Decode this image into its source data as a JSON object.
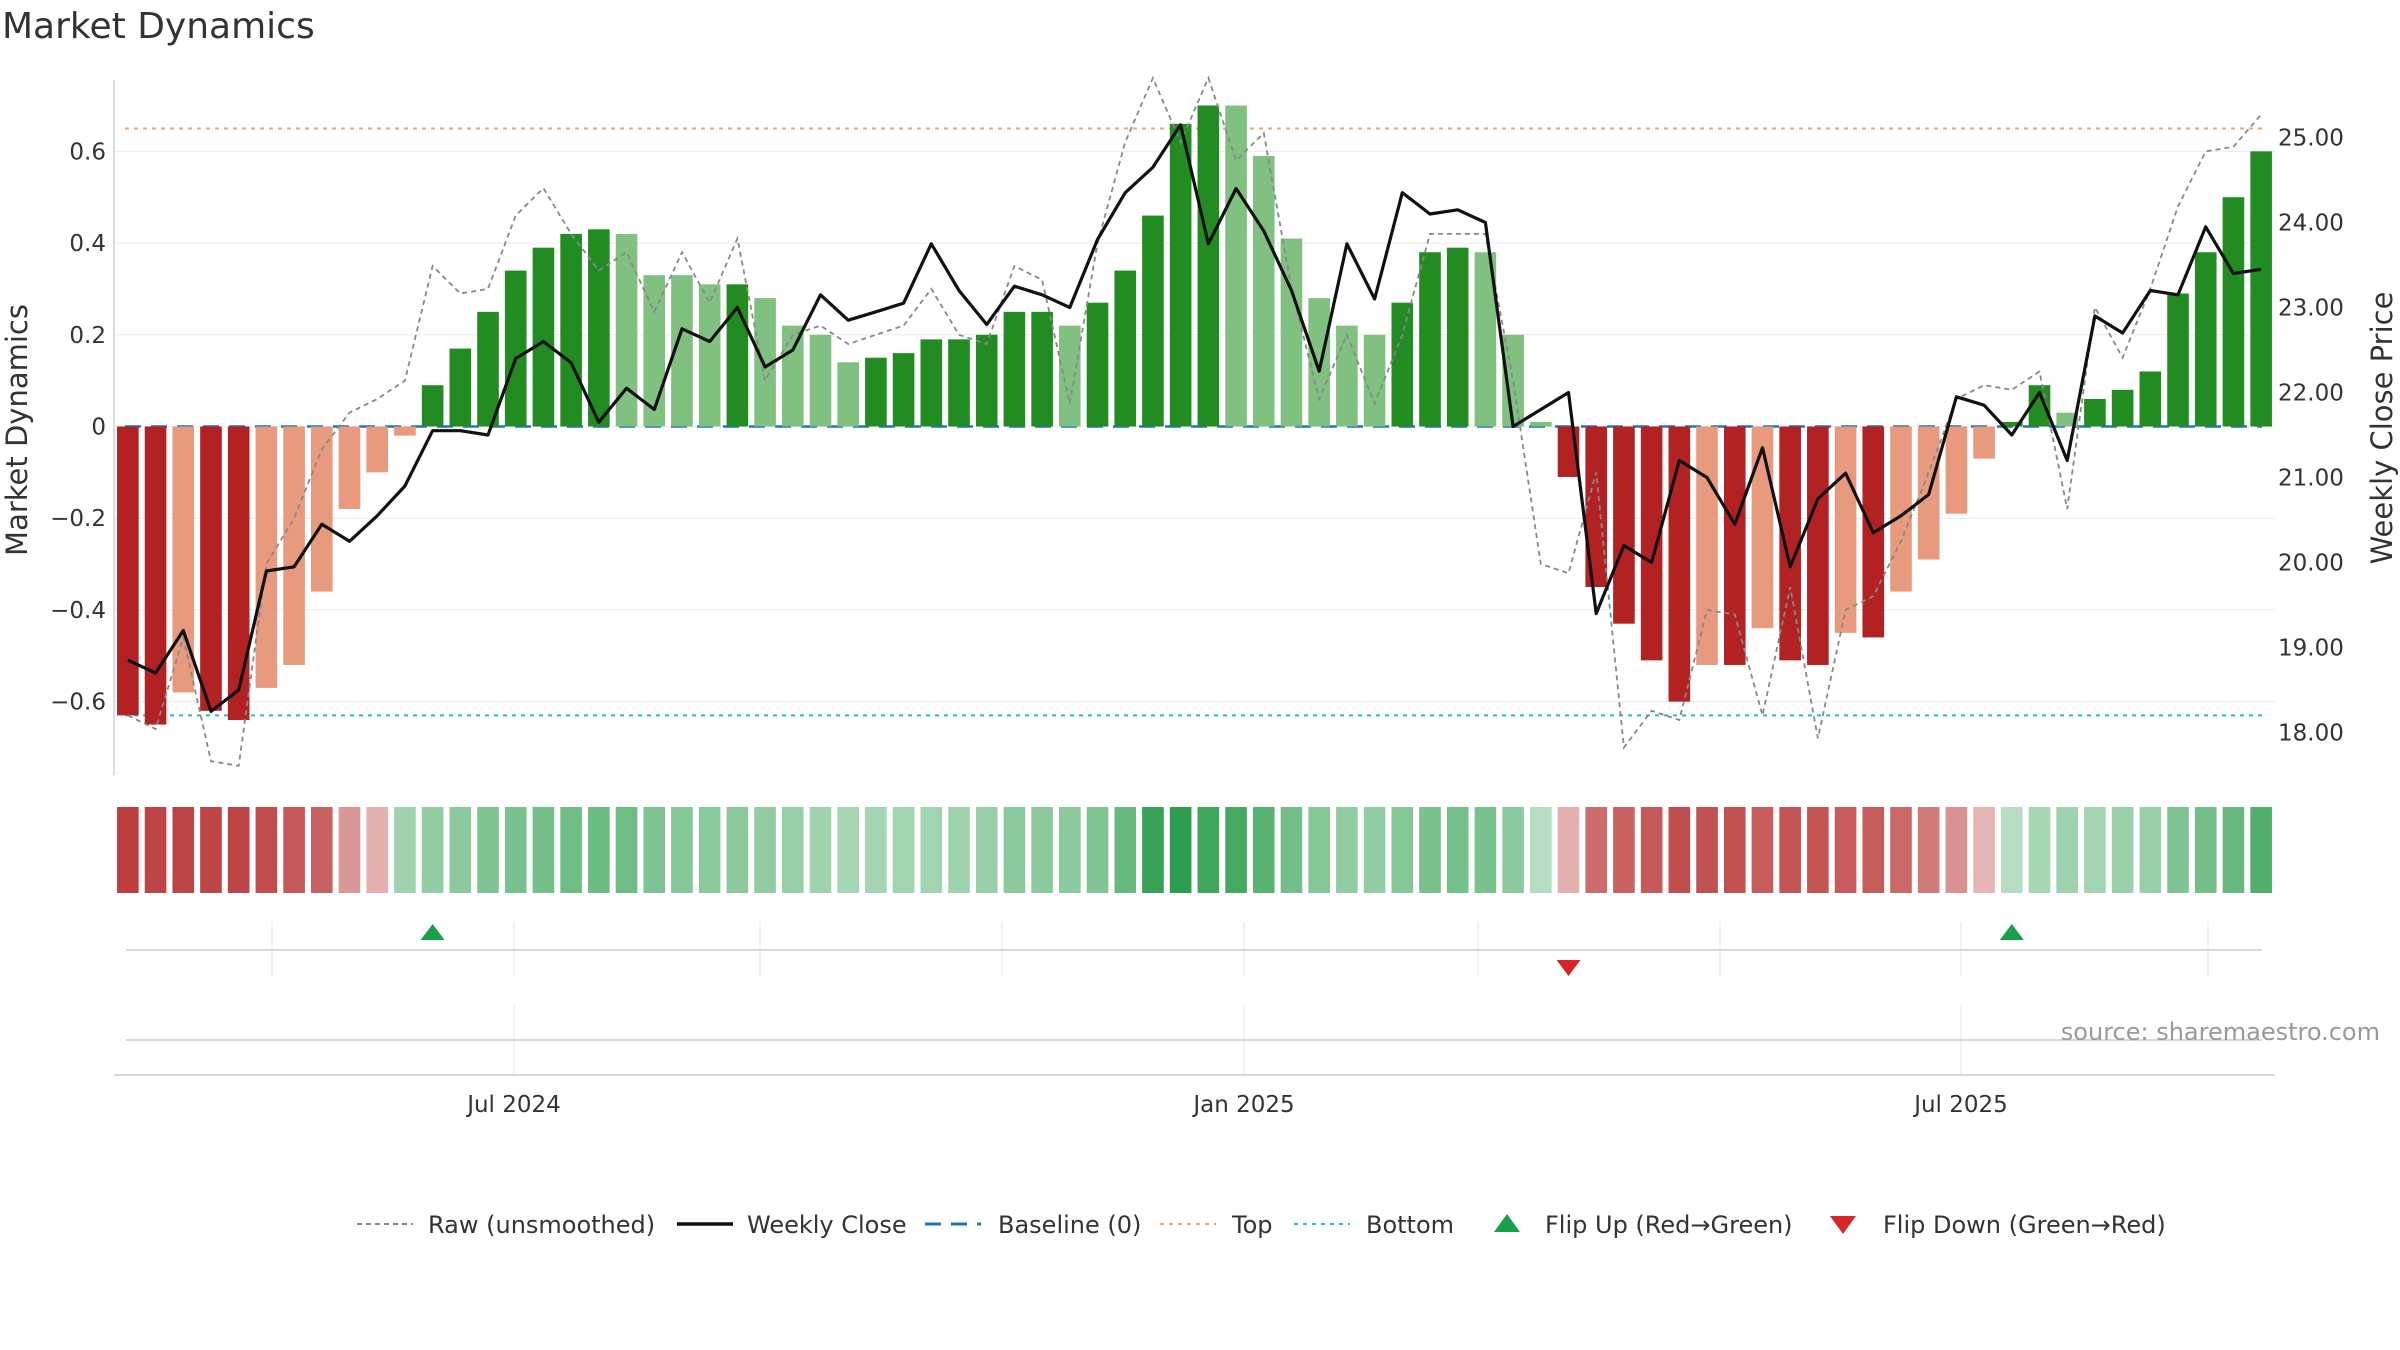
{
  "chart_data": {
    "type": "bar",
    "title": "Market Dynamics",
    "ylabel": "Market Dynamics",
    "y2label": "Weekly Close Price",
    "ylim": [
      -0.76,
      0.76
    ],
    "y2lim": [
      17.5,
      25.7
    ],
    "yticks": [
      "−0.6",
      "−0.4",
      "−0.2",
      "0",
      "0.2",
      "0.4",
      "0.6"
    ],
    "y2ticks": [
      "18.00",
      "19.00",
      "20.00",
      "21.00",
      "22.00",
      "23.00",
      "24.00",
      "25.00"
    ],
    "x_tick_labels": [
      "Jul 2024",
      "Jan 2025",
      "Jul 2025"
    ],
    "top_level": 0.65,
    "bottom_level": -0.63,
    "baseline": 0,
    "source": "source: sharemaestro.com",
    "colors": {
      "strong_up": "#228b22",
      "weak_up": "#80c080",
      "strong_down": "#b22222",
      "weak_down": "#e89a7e",
      "close_line": "#111111",
      "raw_line": "#888888",
      "baseline": "#1f77b4",
      "top": "#f4a460",
      "bottom": "#20c0c0",
      "flip_up": "#1a9e4a",
      "flip_down": "#d62728"
    },
    "legend": [
      {
        "label": "Raw (unsmoothed)",
        "style": "raw"
      },
      {
        "label": "Weekly Close",
        "style": "close"
      },
      {
        "label": "Baseline (0)",
        "style": "baseline"
      },
      {
        "label": "Top",
        "style": "top"
      },
      {
        "label": "Bottom",
        "style": "bottom"
      },
      {
        "label": "Flip Up (Red→Green)",
        "style": "flip_up"
      },
      {
        "label": "Flip Down (Green→Red)",
        "style": "flip_down"
      }
    ],
    "series": [
      {
        "name": "Market Dynamics",
        "values": [
          -0.63,
          -0.65,
          -0.58,
          -0.62,
          -0.64,
          -0.57,
          -0.52,
          -0.36,
          -0.18,
          -0.1,
          -0.02,
          0.09,
          0.17,
          0.25,
          0.34,
          0.39,
          0.42,
          0.43,
          0.42,
          0.33,
          0.33,
          0.31,
          0.31,
          0.28,
          0.22,
          0.2,
          0.14,
          0.15,
          0.16,
          0.19,
          0.19,
          0.2,
          0.25,
          0.25,
          0.22,
          0.27,
          0.34,
          0.46,
          0.66,
          0.7,
          0.7,
          0.59,
          0.41,
          0.28,
          0.22,
          0.2,
          0.27,
          0.38,
          0.39,
          0.38,
          0.2,
          0.01,
          -0.11,
          -0.35,
          -0.43,
          -0.51,
          -0.6,
          -0.52,
          -0.52,
          -0.44,
          -0.51,
          -0.52,
          -0.45,
          -0.46,
          -0.36,
          -0.29,
          -0.19,
          -0.07,
          0.01,
          0.09,
          0.03,
          0.06,
          0.08,
          0.12,
          0.29,
          0.38,
          0.5,
          0.6
        ],
        "strength": [
          "s",
          "s",
          "w",
          "s",
          "s",
          "w",
          "w",
          "w",
          "w",
          "w",
          "w",
          "s",
          "s",
          "s",
          "s",
          "s",
          "s",
          "s",
          "w",
          "w",
          "w",
          "w",
          "s",
          "w",
          "w",
          "w",
          "w",
          "s",
          "s",
          "s",
          "s",
          "s",
          "s",
          "s",
          "w",
          "s",
          "s",
          "s",
          "s",
          "s",
          "w",
          "w",
          "w",
          "w",
          "w",
          "w",
          "s",
          "s",
          "s",
          "w",
          "w",
          "w",
          "s",
          "s",
          "s",
          "s",
          "s",
          "w",
          "s",
          "w",
          "s",
          "s",
          "w",
          "s",
          "w",
          "w",
          "w",
          "w",
          "s",
          "s",
          "w",
          "s",
          "s",
          "s",
          "s",
          "s",
          "s",
          "s"
        ]
      },
      {
        "name": "Raw (unsmoothed)",
        "values": [
          -0.63,
          -0.66,
          -0.46,
          -0.73,
          -0.74,
          -0.3,
          -0.2,
          -0.05,
          0.03,
          0.06,
          0.1,
          0.35,
          0.29,
          0.3,
          0.46,
          0.52,
          0.42,
          0.34,
          0.38,
          0.25,
          0.38,
          0.27,
          0.41,
          0.1,
          0.2,
          0.22,
          0.18,
          0.2,
          0.22,
          0.3,
          0.2,
          0.18,
          0.35,
          0.32,
          0.05,
          0.4,
          0.62,
          0.78,
          0.62,
          0.85,
          0.58,
          0.64,
          0.3,
          0.06,
          0.2,
          0.05,
          0.2,
          0.42,
          0.42,
          0.42,
          0.1,
          -0.3,
          -0.32,
          -0.1,
          -0.7,
          -0.62,
          -0.64,
          -0.4,
          -0.41,
          -0.63,
          -0.35,
          -0.68,
          -0.4,
          -0.37,
          -0.25,
          -0.1,
          0.06,
          0.09,
          0.08,
          0.12,
          -0.18,
          0.26,
          0.15,
          0.3,
          0.48,
          0.6,
          0.61,
          0.68
        ]
      },
      {
        "name": "Weekly Close",
        "values": [
          18.85,
          18.7,
          19.2,
          18.25,
          18.5,
          19.9,
          19.95,
          20.45,
          20.25,
          20.55,
          20.9,
          21.55,
          21.55,
          21.5,
          22.4,
          22.6,
          22.35,
          21.65,
          22.05,
          21.8,
          22.75,
          22.6,
          23.0,
          22.3,
          22.5,
          23.15,
          22.85,
          22.95,
          23.05,
          23.75,
          23.2,
          22.8,
          23.25,
          23.15,
          23.0,
          23.8,
          24.35,
          24.65,
          25.15,
          23.75,
          24.4,
          23.9,
          23.2,
          22.25,
          23.75,
          23.1,
          24.35,
          24.1,
          24.15,
          24.0,
          21.6,
          21.8,
          22.0,
          19.4,
          20.2,
          20.0,
          21.2,
          21.0,
          20.45,
          21.35,
          19.95,
          20.75,
          21.05,
          20.35,
          20.55,
          20.8,
          21.95,
          21.85,
          21.5,
          22.0,
          21.2,
          22.9,
          22.7,
          23.2,
          23.15,
          23.95,
          23.4,
          23.45
        ]
      }
    ],
    "heat_strip": [
      -0.63,
      -0.6,
      -0.6,
      -0.6,
      -0.6,
      -0.57,
      -0.52,
      -0.48,
      -0.25,
      -0.15,
      0.22,
      0.27,
      0.3,
      0.35,
      0.38,
      0.4,
      0.42,
      0.43,
      0.42,
      0.36,
      0.33,
      0.31,
      0.3,
      0.28,
      0.25,
      0.22,
      0.19,
      0.2,
      0.21,
      0.21,
      0.22,
      0.25,
      0.3,
      0.3,
      0.3,
      0.34,
      0.45,
      0.66,
      0.7,
      0.62,
      0.6,
      0.52,
      0.4,
      0.33,
      0.28,
      0.27,
      0.33,
      0.38,
      0.39,
      0.38,
      0.3,
      0.12,
      -0.15,
      -0.44,
      -0.48,
      -0.52,
      -0.56,
      -0.55,
      -0.55,
      -0.5,
      -0.53,
      -0.53,
      -0.5,
      -0.5,
      -0.45,
      -0.38,
      -0.28,
      -0.12,
      0.12,
      0.18,
      0.22,
      0.2,
      0.24,
      0.25,
      0.35,
      0.4,
      0.45,
      0.55
    ],
    "flips": [
      {
        "direction": "up",
        "index": 11
      },
      {
        "direction": "down",
        "index": 52
      },
      {
        "direction": "up",
        "index": 68
      }
    ]
  }
}
